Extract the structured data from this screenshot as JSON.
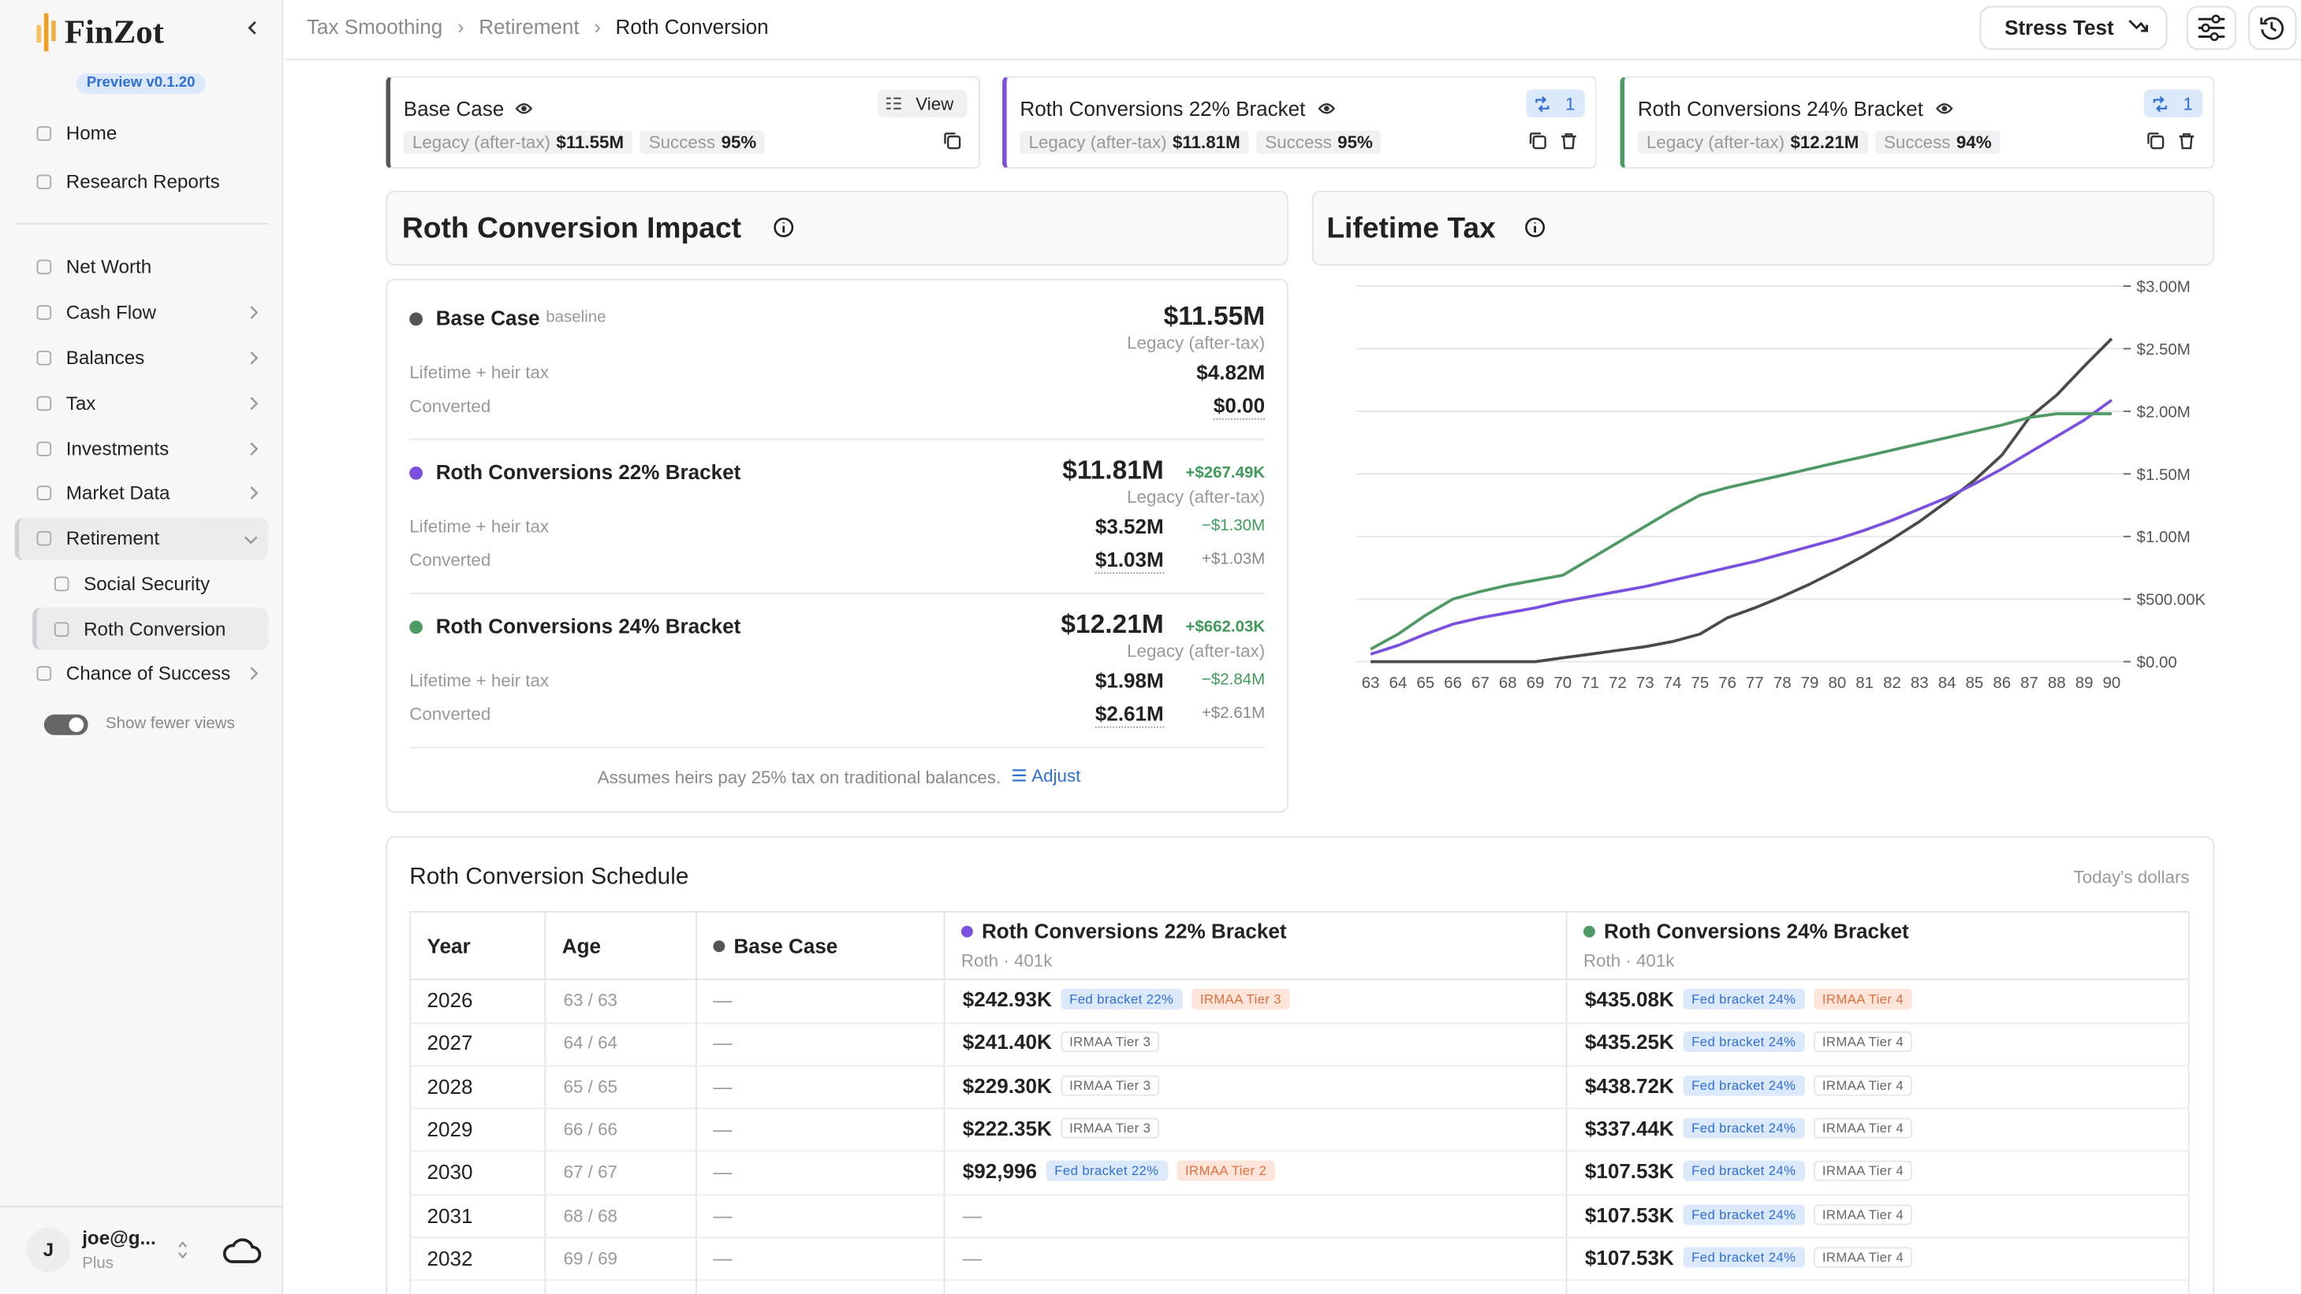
{
  "sidebar": {
    "brand": "FinZot",
    "version": "Preview v0.1.20",
    "nav": [
      {
        "label": "Home"
      },
      {
        "label": "Research Reports"
      },
      {
        "label": "Net Worth"
      },
      {
        "label": "Cash Flow"
      },
      {
        "label": "Balances"
      },
      {
        "label": "Tax"
      },
      {
        "label": "Investments"
      },
      {
        "label": "Market Data"
      },
      {
        "label": "Retirement",
        "children": [
          {
            "label": "Social Security"
          },
          {
            "label": "Roth Conversion"
          }
        ]
      },
      {
        "label": "Chance of Success"
      }
    ],
    "toggle": "Show fewer views",
    "user": {
      "initial": "J",
      "name": "joe@g...",
      "plan": "Plus"
    }
  },
  "header": {
    "breadcrumb": [
      "Tax Smoothing",
      "Retirement",
      "Roth Conversion"
    ],
    "stress_test": "Stress Test"
  },
  "scenarios": [
    {
      "name": "Base Case",
      "color": "#555555",
      "legacy_label": "Legacy (after-tax)",
      "legacy": "$11.55M",
      "success_label": "Success",
      "success": "95%",
      "action": "View"
    },
    {
      "name": "Roth Conversions 22% Bracket",
      "color": "#7b4fe0",
      "legacy_label": "Legacy (after-tax)",
      "legacy": "$11.81M",
      "success_label": "Success",
      "success": "95%",
      "badge": "1"
    },
    {
      "name": "Roth Conversions 24% Bracket",
      "color": "#4f9a64",
      "legacy_label": "Legacy (after-tax)",
      "legacy": "$12.21M",
      "success_label": "Success",
      "success": "94%",
      "badge": "1"
    }
  ],
  "impact": {
    "title": "Roth Conversion Impact",
    "rows": [
      {
        "name": "Base Case",
        "tag": "baseline",
        "color": "#555555",
        "legacy": "$11.55M",
        "legacy_label": "Legacy (after-tax)",
        "tax_label": "Lifetime + heir tax",
        "tax": "$4.82M",
        "converted_label": "Converted",
        "converted": "$0.00"
      },
      {
        "name": "Roth Conversions 22% Bracket",
        "color": "#7b4fe0",
        "legacy": "$11.81M",
        "legacy_delta": "+$267.49K",
        "legacy_label": "Legacy (after-tax)",
        "tax_label": "Lifetime + heir tax",
        "tax": "$3.52M",
        "tax_delta": "−$1.30M",
        "converted_label": "Converted",
        "converted": "$1.03M",
        "converted_delta": "+$1.03M"
      },
      {
        "name": "Roth Conversions 24% Bracket",
        "color": "#4f9a64",
        "legacy": "$12.21M",
        "legacy_delta": "+$662.03K",
        "legacy_label": "Legacy (after-tax)",
        "tax_label": "Lifetime + heir tax",
        "tax": "$1.98M",
        "tax_delta": "−$2.84M",
        "converted_label": "Converted",
        "converted": "$2.61M",
        "converted_delta": "+$2.61M"
      }
    ],
    "note": "Assumes heirs pay 25% tax on traditional balances.",
    "adjust": "Adjust"
  },
  "chart_data": {
    "type": "line",
    "title": "Lifetime Tax",
    "x": [
      63,
      64,
      65,
      66,
      67,
      68,
      69,
      70,
      71,
      72,
      73,
      74,
      75,
      76,
      77,
      78,
      79,
      80,
      81,
      82,
      83,
      84,
      85,
      86,
      87,
      88,
      89,
      90
    ],
    "xlim": [
      63,
      90
    ],
    "xticks": [
      63,
      64,
      65,
      66,
      67,
      68,
      69,
      70,
      71,
      72,
      73,
      74,
      75,
      76,
      77,
      78,
      79,
      80,
      81,
      82,
      83,
      84,
      85,
      86,
      87,
      88,
      89,
      90
    ],
    "ylim": [
      0,
      3000000
    ],
    "yticks": [
      {
        "value": 0,
        "label": "$0.00"
      },
      {
        "value": 500000,
        "label": "$500.00K"
      },
      {
        "value": 1000000,
        "label": "$1.00M"
      },
      {
        "value": 1500000,
        "label": "$1.50M"
      },
      {
        "value": 2000000,
        "label": "$2.00M"
      },
      {
        "value": 2500000,
        "label": "$2.50M"
      },
      {
        "value": 3000000,
        "label": "$3.00M"
      }
    ],
    "grid": true,
    "y_axis_side": "right",
    "series": [
      {
        "color": "#4a4a4a",
        "values": [
          0,
          0,
          0,
          0,
          0,
          0,
          0,
          30000,
          60000,
          90000,
          120000,
          160000,
          220000,
          350000,
          430000,
          520000,
          620000,
          730000,
          850000,
          980000,
          1120000,
          1280000,
          1450000,
          1650000,
          1950000,
          2130000,
          2360000,
          2580000
        ]
      },
      {
        "color": "#7b4fe0",
        "values": [
          60000,
          130000,
          220000,
          300000,
          350000,
          390000,
          430000,
          480000,
          520000,
          560000,
          600000,
          650000,
          700000,
          750000,
          800000,
          860000,
          920000,
          980000,
          1050000,
          1130000,
          1220000,
          1310000,
          1420000,
          1540000,
          1670000,
          1800000,
          1930000,
          2090000
        ]
      },
      {
        "color": "#4f9a64",
        "values": [
          100000,
          220000,
          370000,
          500000,
          560000,
          610000,
          650000,
          690000,
          820000,
          950000,
          1080000,
          1210000,
          1330000,
          1390000,
          1440000,
          1490000,
          1540000,
          1590000,
          1640000,
          1690000,
          1740000,
          1790000,
          1840000,
          1890000,
          1950000,
          1980000,
          1980000,
          1980000
        ]
      }
    ]
  },
  "schedule": {
    "title": "Roth Conversion Schedule",
    "unit_note": "Today's dollars",
    "columns": [
      {
        "name": "Year"
      },
      {
        "name": "Age"
      },
      {
        "name": "Base Case",
        "color": "#555555"
      },
      {
        "name": "Roth Conversions 22% Bracket",
        "sub": "Roth · 401k",
        "color": "#7b4fe0"
      },
      {
        "name": "Roth Conversions 24% Bracket",
        "sub": "Roth · 401k",
        "color": "#4f9a64"
      }
    ],
    "rows": [
      [
        "2026",
        "63 / 63",
        "—",
        {
          "amount": "$242.93K",
          "tags": [
            {
              "label": "Fed bracket 22%",
              "color": "blue"
            },
            {
              "label": "IRMAA Tier 3",
              "color": "orange"
            }
          ]
        },
        {
          "amount": "$435.08K",
          "tags": [
            {
              "label": "Fed bracket 24%",
              "color": "blue"
            },
            {
              "label": "IRMAA Tier 4",
              "color": "orange"
            }
          ]
        }
      ],
      [
        "2027",
        "64 / 64",
        "—",
        {
          "amount": "$241.40K",
          "tags": [
            {
              "label": "IRMAA Tier 3",
              "color": "gray"
            }
          ]
        },
        {
          "amount": "$435.25K",
          "tags": [
            {
              "label": "Fed bracket 24%",
              "color": "blue"
            },
            {
              "label": "IRMAA Tier 4",
              "color": "gray"
            }
          ]
        }
      ],
      [
        "2028",
        "65 / 65",
        "—",
        {
          "amount": "$229.30K",
          "tags": [
            {
              "label": "IRMAA Tier 3",
              "color": "gray"
            }
          ]
        },
        {
          "amount": "$438.72K",
          "tags": [
            {
              "label": "Fed bracket 24%",
              "color": "blue"
            },
            {
              "label": "IRMAA Tier 4",
              "color": "gray"
            }
          ]
        }
      ],
      [
        "2029",
        "66 / 66",
        "—",
        {
          "amount": "$222.35K",
          "tags": [
            {
              "label": "IRMAA Tier 3",
              "color": "gray"
            }
          ]
        },
        {
          "amount": "$337.44K",
          "tags": [
            {
              "label": "Fed bracket 24%",
              "color": "blue"
            },
            {
              "label": "IRMAA Tier 4",
              "color": "gray"
            }
          ]
        }
      ],
      [
        "2030",
        "67 / 67",
        "—",
        {
          "amount": "$92,996",
          "tags": [
            {
              "label": "Fed bracket 22%",
              "color": "blue"
            },
            {
              "label": "IRMAA Tier 2",
              "color": "orange"
            }
          ]
        },
        {
          "amount": "$107.53K",
          "tags": [
            {
              "label": "Fed bracket 24%",
              "color": "blue"
            },
            {
              "label": "IRMAA Tier 4",
              "color": "gray"
            }
          ]
        }
      ],
      [
        "2031",
        "68 / 68",
        "—",
        "—",
        {
          "amount": "$107.53K",
          "tags": [
            {
              "label": "Fed bracket 24%",
              "color": "blue"
            },
            {
              "label": "IRMAA Tier 4",
              "color": "gray"
            }
          ]
        }
      ],
      [
        "2032",
        "69 / 69",
        "—",
        "—",
        {
          "amount": "$107.53K",
          "tags": [
            {
              "label": "Fed bracket 24%",
              "color": "blue"
            },
            {
              "label": "IRMAA Tier 4",
              "color": "gray"
            }
          ]
        }
      ]
    ]
  }
}
